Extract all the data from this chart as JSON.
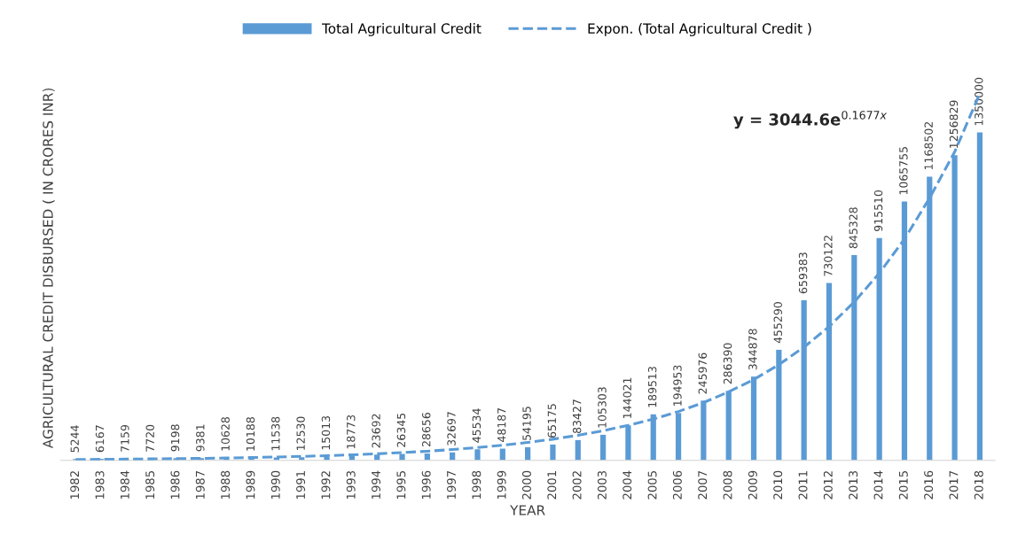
{
  "chart_data": {
    "type": "bar",
    "xlabel": "YEAR",
    "ylabel": "AGRICULTURAL CREDIT DISBURSED ( IN CRORES INR)",
    "categories": [
      "1982",
      "1983",
      "1984",
      "1985",
      "1986",
      "1987",
      "1988",
      "1989",
      "1990",
      "1991",
      "1992",
      "1993",
      "1994",
      "1995",
      "1996",
      "1997",
      "1998",
      "1999",
      "2000",
      "2001",
      "2002",
      "2003",
      "2004",
      "2005",
      "2006",
      "2007",
      "2008",
      "2009",
      "2010",
      "2011",
      "2012",
      "2013",
      "2014",
      "2015",
      "2016",
      "2017",
      "2018"
    ],
    "series": [
      {
        "name": "Total Agricultural Credit",
        "color": "#5b9bd5",
        "values": [
          5244,
          6167,
          7159,
          7720,
          9198,
          9381,
          10628,
          10188,
          11538,
          12530,
          15013,
          18773,
          23692,
          26345,
          28656,
          32697,
          45534,
          48187,
          54195,
          65175,
          83427,
          105303,
          144021,
          189513,
          194953,
          245976,
          286390,
          344878,
          455290,
          659383,
          730122,
          845328,
          915510,
          1065755,
          1168502,
          1256829,
          1350000
        ],
        "value_labels": [
          "5244",
          "6167",
          "7159",
          "7720",
          "9198",
          "9381",
          "10628",
          "10188",
          "11538",
          "12530",
          "15013",
          "18773",
          "23692",
          "26345",
          "28656",
          "32697",
          "45534",
          "48187",
          "54195",
          "65175",
          "83427",
          "105303",
          "144021",
          "189513",
          "194953",
          "245976",
          "286390",
          "344878",
          "455290",
          "659383",
          "730122",
          "845328",
          "915510",
          "1065755",
          "1168502",
          "1256829",
          "1350000"
        ]
      },
      {
        "name": "Expon. (Total Agricultural Credit )",
        "type": "line",
        "color": "#5b9bd5",
        "line_style": "dashed",
        "values": [
          3600,
          4260,
          5040,
          5960,
          7040,
          8330,
          9850,
          11600,
          13800,
          16300,
          19300,
          22800,
          26900,
          31900,
          37700,
          44500,
          52700,
          62300,
          73700,
          87100,
          103000,
          122000,
          144000,
          170000,
          201000,
          238000,
          282000,
          333000,
          394000,
          466000,
          551000,
          652000,
          771000,
          911000,
          1080000,
          1270000,
          1510000
        ]
      }
    ],
    "tick_labels": "x",
    "grid": false,
    "legend": "top",
    "annotations": [
      "y = 3044.6e$^{0.1677x}$"
    ]
  }
}
